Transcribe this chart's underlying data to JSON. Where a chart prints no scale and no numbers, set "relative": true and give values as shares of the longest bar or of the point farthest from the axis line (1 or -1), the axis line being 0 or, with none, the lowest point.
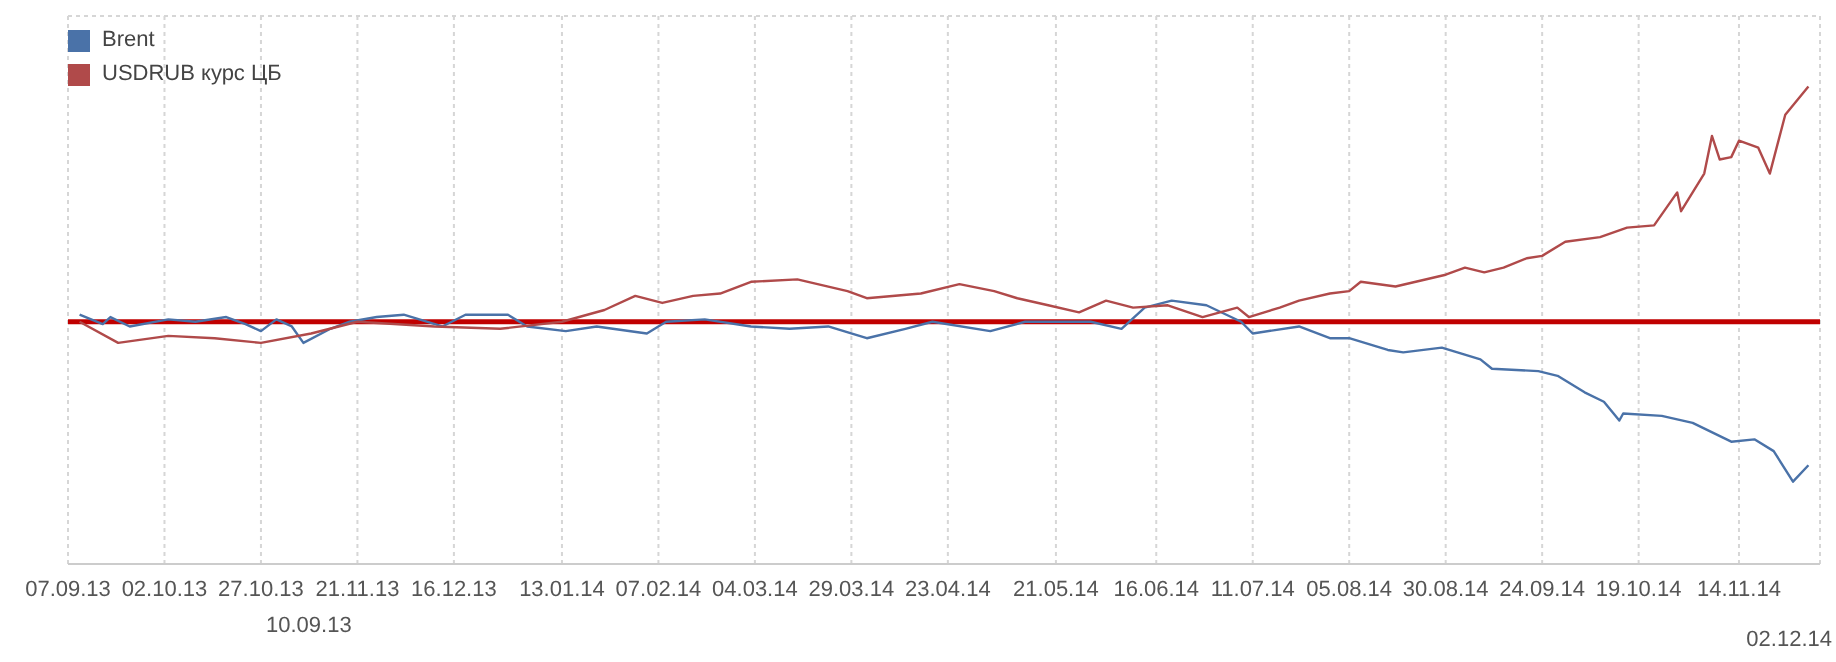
{
  "chart_data": {
    "type": "line",
    "relative": true,
    "grid": true,
    "legend": "top left",
    "marker": "none",
    "line_style": "solid",
    "xlim": [
      "2013-09-07",
      "2014-12-05"
    ],
    "xticks": [
      {
        "value": "2013-09-07",
        "label": "07.09.13"
      },
      {
        "value": "2013-10-02",
        "label": "02.10.13"
      },
      {
        "value": "2013-10-27",
        "label": "27.10.13"
      },
      {
        "value": "2013-11-21",
        "label": "21.11.13"
      },
      {
        "value": "2013-12-16",
        "label": "16.12.13"
      },
      {
        "value": "2014-01-13",
        "label": "13.01.14"
      },
      {
        "value": "2014-02-07",
        "label": "07.02.14"
      },
      {
        "value": "2014-03-04",
        "label": "04.03.14"
      },
      {
        "value": "2014-03-29",
        "label": "29.03.14"
      },
      {
        "value": "2014-04-23",
        "label": "23.04.14"
      },
      {
        "value": "2014-05-21",
        "label": "21.05.14"
      },
      {
        "value": "2014-06-16",
        "label": "16.06.14"
      },
      {
        "value": "2014-07-11",
        "label": "11.07.14"
      },
      {
        "value": "2014-08-05",
        "label": "05.08.14"
      },
      {
        "value": "2014-08-30",
        "label": "30.08.14"
      },
      {
        "value": "2014-09-24",
        "label": "24.09.14"
      },
      {
        "value": "2014-10-19",
        "label": "19.10.14"
      },
      {
        "value": "2014-11-14",
        "label": "14.11.14"
      }
    ],
    "ref_lines": [
      {
        "axis": "y",
        "value": 0,
        "color": "#c00000"
      }
    ],
    "annotations": [
      "10.09.13",
      "02.12.14"
    ],
    "series": [
      {
        "name": "Brent",
        "color": "#4a72a8",
        "x": [
          "2013-09-10",
          "2013-09-16",
          "2013-09-18",
          "2013-09-23",
          "2013-10-03",
          "2013-10-10",
          "2013-10-18",
          "2013-10-23",
          "2013-10-27",
          "2013-10-31",
          "2013-11-04",
          "2013-11-07",
          "2013-11-14",
          "2013-11-19",
          "2013-11-26",
          "2013-12-03",
          "2013-12-13",
          "2013-12-19",
          "2013-12-30",
          "2014-01-04",
          "2014-01-14",
          "2014-01-22",
          "2014-02-04",
          "2014-02-09",
          "2014-02-19",
          "2014-03-03",
          "2014-03-13",
          "2014-03-23",
          "2014-04-02",
          "2014-04-12",
          "2014-04-19",
          "2014-05-04",
          "2014-05-13",
          "2014-05-30",
          "2014-06-07",
          "2014-06-13",
          "2014-06-20",
          "2014-06-29",
          "2014-07-08",
          "2014-07-11",
          "2014-07-23",
          "2014-07-31",
          "2014-08-05",
          "2014-08-15",
          "2014-08-19",
          "2014-08-29",
          "2014-09-08",
          "2014-09-11",
          "2014-09-23",
          "2014-09-28",
          "2014-10-05",
          "2014-10-10",
          "2014-10-14",
          "2014-10-15",
          "2014-10-25",
          "2014-11-02",
          "2014-11-12",
          "2014-11-18",
          "2014-11-23",
          "2014-11-28",
          "2014-12-02"
        ],
        "values": [
          0.03,
          -0.01,
          0.02,
          -0.02,
          0.01,
          0,
          0.02,
          -0.01,
          -0.04,
          0.01,
          -0.02,
          -0.09,
          -0.03,
          0,
          0.02,
          0.03,
          -0.02,
          0.03,
          0.03,
          -0.02,
          -0.04,
          -0.02,
          -0.05,
          0,
          0.01,
          -0.02,
          -0.03,
          -0.02,
          -0.07,
          -0.03,
          0,
          -0.04,
          0,
          0,
          -0.03,
          0.06,
          0.09,
          0.07,
          0,
          -0.05,
          -0.02,
          -0.07,
          -0.07,
          -0.12,
          -0.13,
          -0.11,
          -0.16,
          -0.2,
          -0.21,
          -0.23,
          -0.3,
          -0.34,
          -0.42,
          -0.39,
          -0.4,
          -0.43,
          -0.51,
          -0.5,
          -0.55,
          -0.68,
          -0.61
        ]
      },
      {
        "name": "USDRUB курс ЦБ",
        "color": "#b04a4a",
        "x": [
          "2013-09-10",
          "2013-09-20",
          "2013-10-03",
          "2013-10-15",
          "2013-10-27",
          "2013-11-09",
          "2013-11-21",
          "2013-12-11",
          "2013-12-28",
          "2014-01-13",
          "2014-01-24",
          "2014-02-01",
          "2014-02-08",
          "2014-02-16",
          "2014-02-23",
          "2014-03-03",
          "2014-03-15",
          "2014-03-28",
          "2014-04-02",
          "2014-04-16",
          "2014-04-26",
          "2014-05-05",
          "2014-05-11",
          "2014-05-19",
          "2014-05-27",
          "2014-06-03",
          "2014-06-10",
          "2014-06-19",
          "2014-06-28",
          "2014-07-07",
          "2014-07-10",
          "2014-07-18",
          "2014-07-23",
          "2014-07-31",
          "2014-08-05",
          "2014-08-08",
          "2014-08-17",
          "2014-08-30",
          "2014-09-04",
          "2014-09-09",
          "2014-09-14",
          "2014-09-20",
          "2014-09-24",
          "2014-09-30",
          "2014-10-09",
          "2014-10-16",
          "2014-10-23",
          "2014-10-26",
          "2014-10-29",
          "2014-10-30",
          "2014-11-05",
          "2014-11-07",
          "2014-11-09",
          "2014-11-12",
          "2014-11-14",
          "2014-11-19",
          "2014-11-22",
          "2014-11-26",
          "2014-12-02"
        ],
        "values": [
          0,
          -0.09,
          -0.06,
          -0.07,
          -0.09,
          -0.05,
          0,
          -0.02,
          -0.03,
          0,
          0.05,
          0.11,
          0.08,
          0.11,
          0.12,
          0.17,
          0.18,
          0.13,
          0.1,
          0.12,
          0.16,
          0.13,
          0.1,
          0.07,
          0.04,
          0.09,
          0.06,
          0.07,
          0.02,
          0.06,
          0.02,
          0.06,
          0.09,
          0.12,
          0.13,
          0.17,
          0.15,
          0.2,
          0.23,
          0.21,
          0.23,
          0.27,
          0.28,
          0.34,
          0.36,
          0.4,
          0.41,
          0.48,
          0.55,
          0.47,
          0.63,
          0.79,
          0.69,
          0.7,
          0.77,
          0.74,
          0.63,
          0.88,
          1
        ]
      }
    ]
  }
}
